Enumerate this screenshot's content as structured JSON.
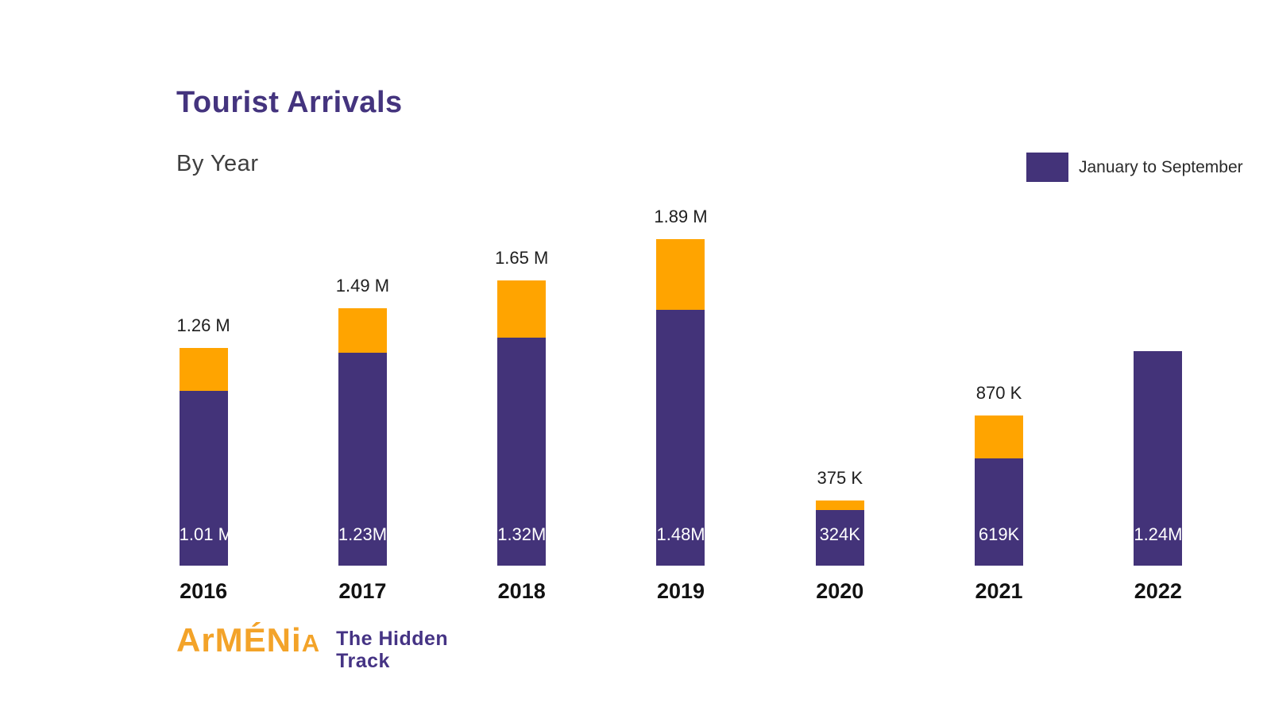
{
  "chart_data": {
    "type": "bar",
    "stacked": true,
    "title": "Tourist Arrivals",
    "subtitle": "By Year",
    "unit": "millions of tourist arrivals",
    "categories": [
      "2016",
      "2017",
      "2018",
      "2019",
      "2020",
      "2021",
      "2022"
    ],
    "series": [
      {
        "name": "January to September",
        "color": "#433379",
        "values": [
          1.01,
          1.23,
          1.32,
          1.48,
          0.324,
          0.619,
          1.24
        ]
      },
      {
        "name": "",
        "color": "#FFA400",
        "values": [
          0.25,
          0.26,
          0.33,
          0.41,
          0.051,
          0.251,
          0
        ]
      }
    ],
    "totals": [
      1.26,
      1.49,
      1.65,
      1.89,
      0.375,
      0.87,
      1.24
    ],
    "bar_value_labels": {
      "totals": [
        "1.26 M",
        "1.49 M",
        "1.65 M",
        "1.89 M",
        "375 K",
        "870 K",
        ""
      ],
      "inside": [
        "1.01 M",
        "1.23M",
        "1.32M",
        "1.48M",
        "324K",
        "619K",
        "1.24M"
      ]
    },
    "legend_position": "top-right",
    "grid": false,
    "axis_lines": false,
    "ylim_millions": [
      0,
      2.15
    ]
  },
  "legend": {
    "label": "January to September",
    "swatch_color": "#433379"
  },
  "logo": {
    "brand_main": "ArMÉNi",
    "brand_last": "A",
    "tagline_line1": "The Hidden",
    "tagline_line2": "Track"
  },
  "colors": {
    "jan_sep_purple": "#433379",
    "remainder_orange": "#FFA400",
    "title_purple": "#44347E",
    "logo_orange": "#F3A329",
    "logo_purple": "#453384",
    "background": "#FFFFFF"
  }
}
